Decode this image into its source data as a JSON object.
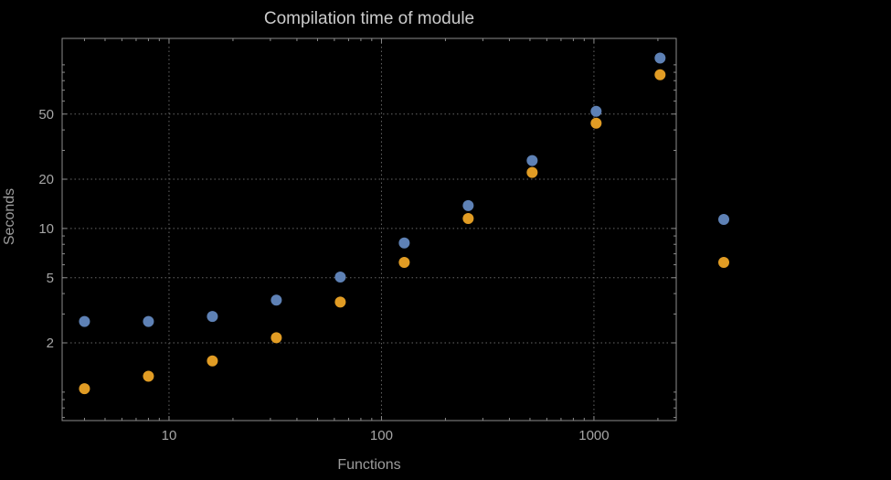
{
  "chart_data": {
    "type": "scatter",
    "title": "Compilation time of module",
    "xlabel": "Functions",
    "ylabel": "Seconds",
    "x_scale": "log",
    "y_scale": "log",
    "x": [
      4,
      8,
      16,
      32,
      64,
      128,
      256,
      512,
      1024,
      2048
    ],
    "series": [
      {
        "name": "blue",
        "color": "#5e81b5",
        "values": [
          2.7,
          2.7,
          2.9,
          3.65,
          5.05,
          8.15,
          13.8,
          26,
          52,
          110
        ]
      },
      {
        "name": "orange",
        "color": "#e19c24",
        "values": [
          1.05,
          1.25,
          1.55,
          2.15,
          3.55,
          6.2,
          11.5,
          22,
          44,
          87
        ]
      }
    ],
    "xlim": [
      3.14,
      2440
    ],
    "ylim": [
      0.67,
      145
    ],
    "xticks": [
      10,
      100,
      1000
    ],
    "yticks": [
      2,
      5,
      10,
      20,
      50
    ],
    "grid": "dotted",
    "legend_position": "right",
    "colors": {
      "background": "#000000",
      "frame": "#8c8c8c",
      "grid": "#666666",
      "title_text": "#cbcbcb",
      "axis_text": "#9c9c9c",
      "tick_text": "#a6a6a6"
    }
  }
}
